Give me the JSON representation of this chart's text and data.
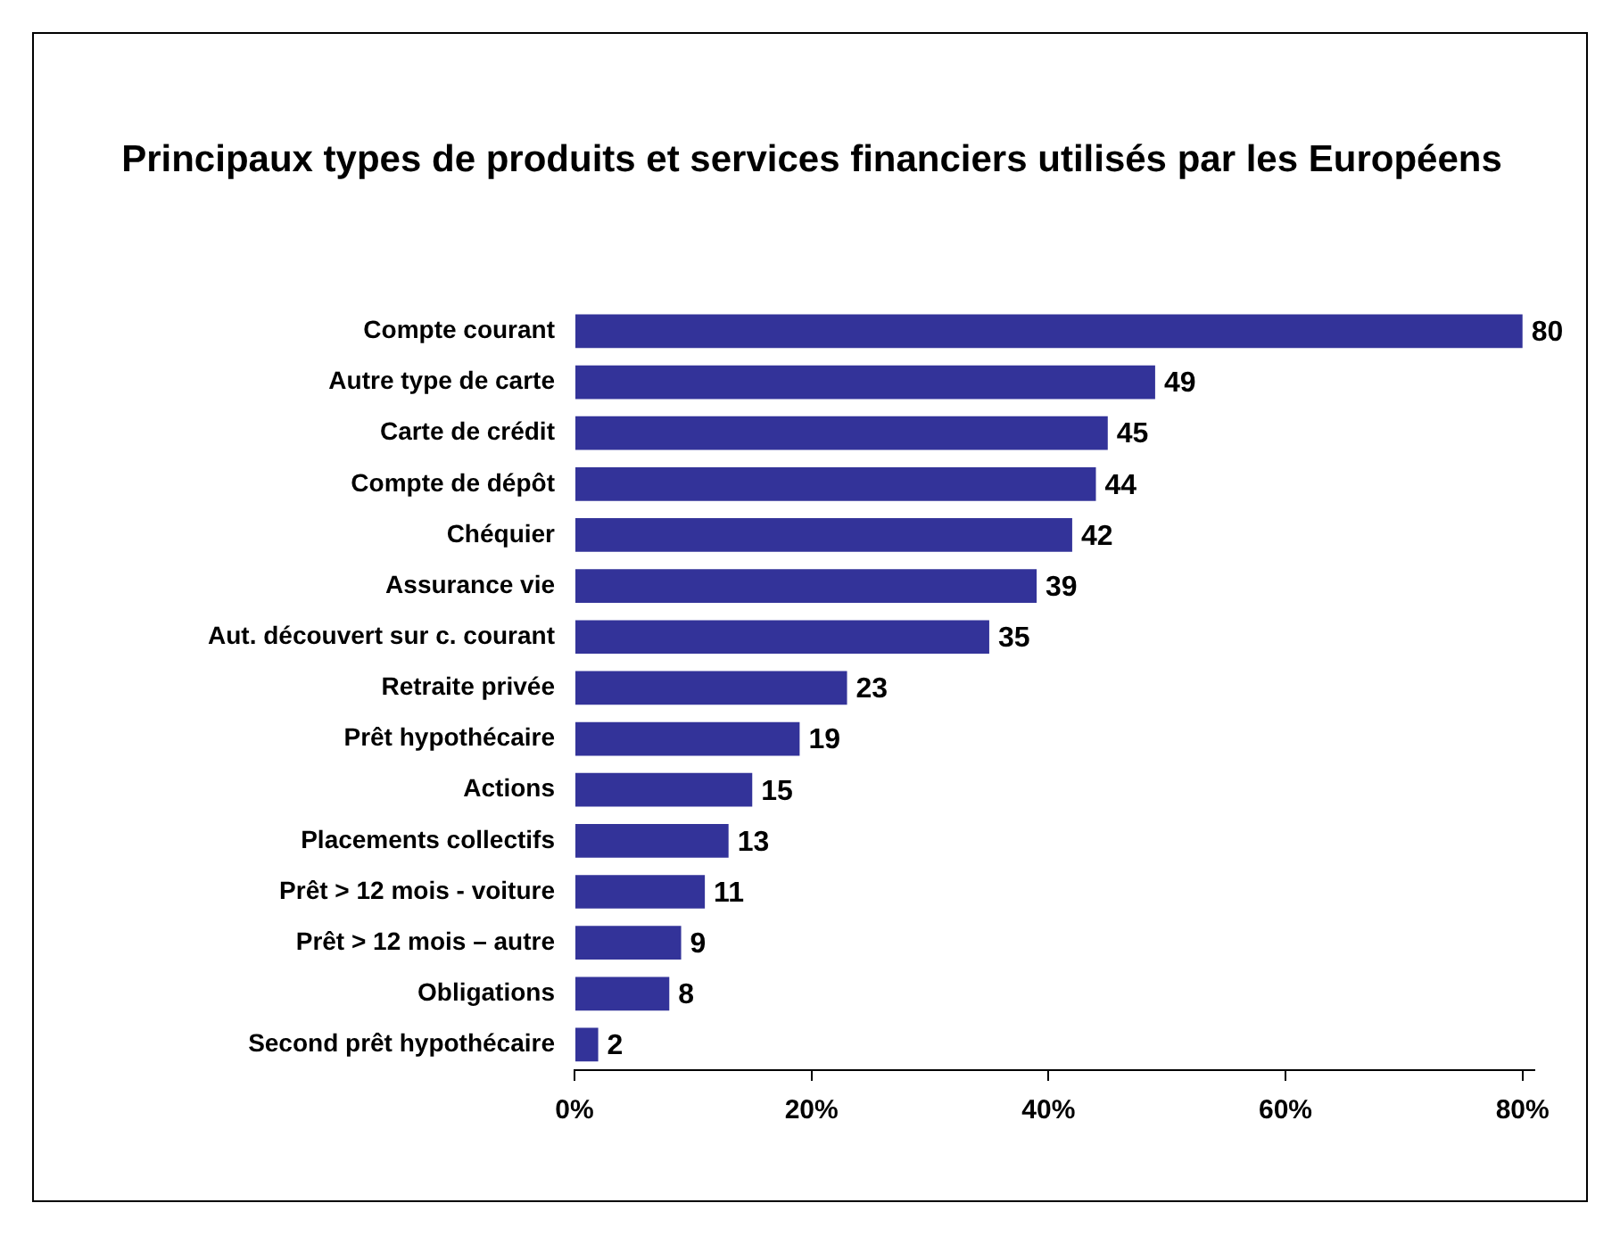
{
  "chart_data": {
    "type": "bar",
    "orientation": "horizontal",
    "title": "Principaux types de produits et services financiers utilisés par les Européens",
    "categories": [
      "Compte courant",
      "Autre type de carte",
      "Carte de crédit",
      "Compte de dépôt",
      "Chéquier",
      "Assurance vie",
      "Aut. découvert sur c. courant",
      "Retraite privée",
      "Prêt hypothécaire",
      "Actions",
      "Placements collectifs",
      "Prêt > 12 mois - voiture",
      "Prêt > 12 mois – autre",
      "Obligations",
      "Second prêt hypothécaire"
    ],
    "values": [
      80,
      49,
      45,
      44,
      42,
      39,
      35,
      23,
      19,
      15,
      13,
      11,
      9,
      8,
      2
    ],
    "color": "#333399",
    "data_labels": true,
    "xlim": [
      0,
      81
    ],
    "xticks": [
      {
        "value": 0,
        "label": "0%"
      },
      {
        "value": 20,
        "label": "20%"
      },
      {
        "value": 40,
        "label": "40%"
      },
      {
        "value": 60,
        "label": "60%"
      },
      {
        "value": 80,
        "label": "80%"
      }
    ]
  }
}
